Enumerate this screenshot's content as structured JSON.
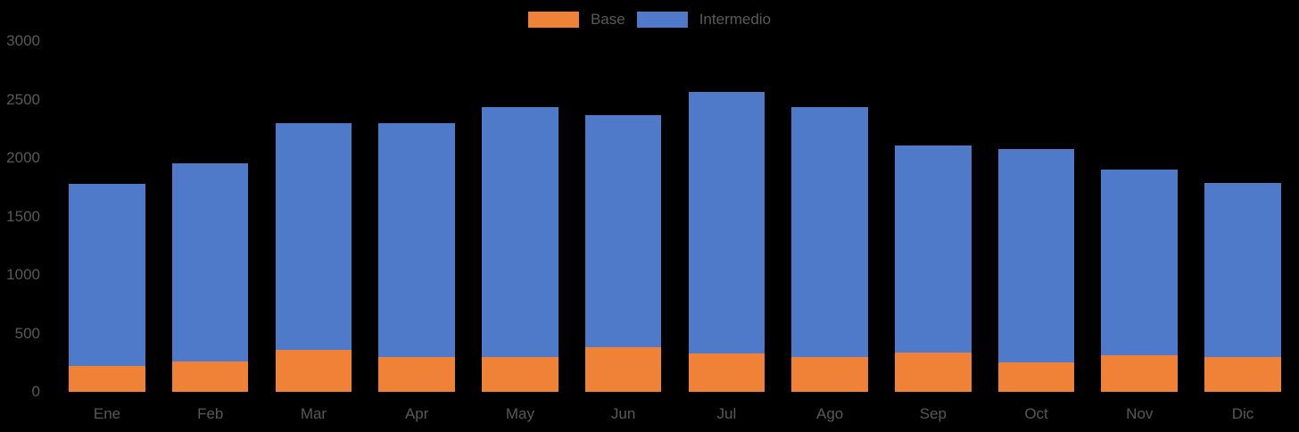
{
  "chart_data": {
    "type": "bar",
    "stacked": true,
    "title": "",
    "xlabel": "",
    "ylabel": "",
    "categories": [
      "Ene",
      "Feb",
      "Mar",
      "Apr",
      "May",
      "Jun",
      "Jul",
      "Ago",
      "Sep",
      "Oct",
      "Nov",
      "Dic"
    ],
    "series": [
      {
        "name": "Base",
        "color": "#F08238",
        "values": [
          220,
          260,
          360,
          300,
          300,
          380,
          330,
          300,
          340,
          250,
          310,
          300
        ]
      },
      {
        "name": "Intermedio",
        "color": "#4E7AC9",
        "values": [
          1560,
          1700,
          1940,
          2000,
          2140,
          1990,
          2240,
          2140,
          1770,
          1830,
          1590,
          1490
        ]
      }
    ],
    "totals": [
      1780,
      1960,
      2300,
      2300,
      2440,
      2370,
      2570,
      2440,
      2110,
      2080,
      1900,
      1790
    ],
    "ylim": [
      0,
      3000
    ],
    "yticks": [
      "0",
      "500",
      "1000",
      "1500",
      "2000",
      "2500",
      "3000"
    ],
    "legend_position": "top-center",
    "grid": false,
    "text_color": "#595959",
    "background": "#000000"
  }
}
